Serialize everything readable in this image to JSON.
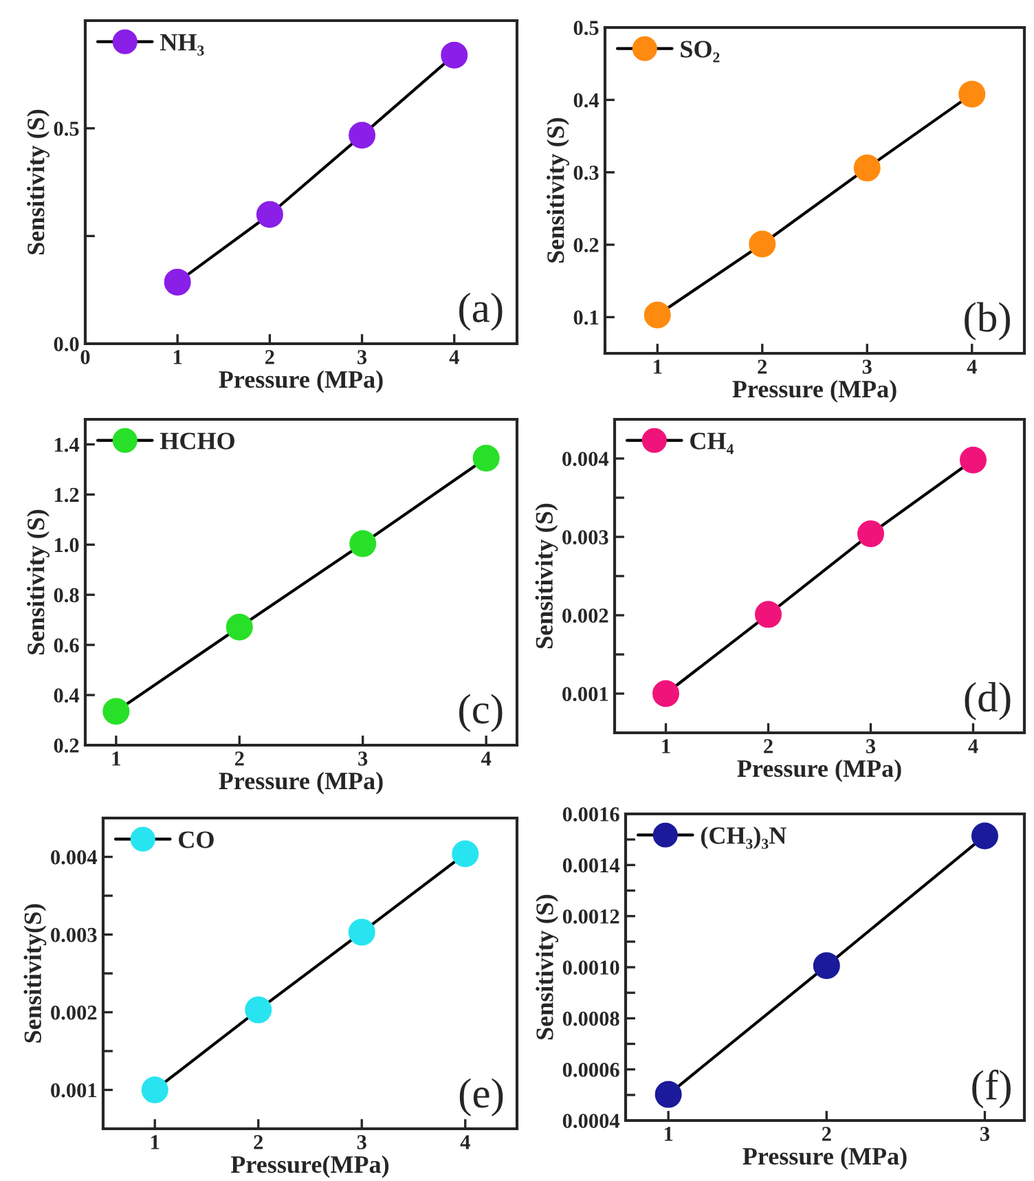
{
  "chart_data": [
    {
      "type": "line",
      "xlabel": "Pressure (MPa)",
      "ylabel": "Sensitivity (S)",
      "x": [
        1,
        2,
        3,
        4
      ],
      "series": [
        {
          "name": "NH₃",
          "color": "#8a1fe8",
          "values": [
            0.143,
            0.3,
            0.484,
            0.67
          ]
        }
      ],
      "xlim": [
        0,
        4.68
      ],
      "ylim": [
        0,
        0.75
      ],
      "xticks": [
        0,
        1,
        2,
        3,
        4
      ],
      "yticks": [
        {
          "value": 0,
          "label": "0.0"
        },
        {
          "value": 0.25,
          "label": null
        },
        0.5
      ],
      "marker": "circle",
      "line_style": "solid",
      "legend": "top left",
      "grid": false,
      "annotations": [
        "(a)"
      ]
    },
    {
      "type": "line",
      "xlabel": "Pressure (MPa)",
      "ylabel": "Sensitivity (S)",
      "x": [
        1,
        2,
        3,
        4
      ],
      "series": [
        {
          "name": "SO₂",
          "color": "#ff8a10",
          "values": [
            0.103,
            0.201,
            0.306,
            0.408
          ]
        }
      ],
      "xlim": [
        0.5,
        4.5
      ],
      "ylim": [
        0.05,
        0.5
      ],
      "xticks": [
        1,
        2,
        3,
        4
      ],
      "yticks": [
        0.1,
        0.2,
        0.3,
        0.4,
        0.5
      ],
      "marker": "circle",
      "line_style": "solid",
      "legend": "top left",
      "grid": false,
      "annotations": [
        "(b)"
      ]
    },
    {
      "type": "line",
      "xlabel": "Pressure (MPa)",
      "ylabel": "Sensitivity (S)",
      "x": [
        1,
        2,
        3,
        4
      ],
      "series": [
        {
          "name": "HCHO",
          "color": "#28e028",
          "values": [
            0.335,
            0.671,
            1.004,
            1.345
          ]
        }
      ],
      "xlim": [
        0.75,
        4.25
      ],
      "ylim": [
        0.2,
        1.5
      ],
      "xticks": [
        1,
        2,
        3,
        4
      ],
      "yticks": [
        0.2,
        0.4,
        0.6,
        0.8,
        {
          "value": 1,
          "label": "1.0"
        },
        1.2,
        1.4
      ],
      "marker": "circle",
      "line_style": "solid",
      "legend": "top left",
      "grid": false,
      "annotations": [
        "(c)"
      ]
    },
    {
      "type": "line",
      "xlabel": "Pressure (MPa)",
      "ylabel": "Sensitivity (S)",
      "x": [
        1,
        2,
        3,
        4
      ],
      "series": [
        {
          "name": "CH₄",
          "color": "#f0147a",
          "values": [
            0.001,
            0.00201,
            0.00304,
            0.00398
          ]
        }
      ],
      "xlim": [
        0.5,
        4.5
      ],
      "ylim": [
        0.0005,
        0.0045
      ],
      "xticks": [
        1,
        2,
        3,
        4
      ],
      "yticks": [
        0.001,
        {
          "value": 0.0015,
          "label": null
        },
        0.002,
        {
          "value": 0.0025,
          "label": null
        },
        0.003,
        {
          "value": 0.0035,
          "label": null
        },
        0.004
      ],
      "marker": "circle",
      "line_style": "solid",
      "legend": "top left",
      "grid": false,
      "annotations": [
        "(d)"
      ]
    },
    {
      "type": "line",
      "xlabel": "Pressure(MPa)",
      "ylabel": "Sensitivity(S)",
      "x": [
        1,
        2,
        3,
        4
      ],
      "series": [
        {
          "name": "CO",
          "color": "#28e4f0",
          "values": [
            0.001,
            0.00203,
            0.00303,
            0.00404
          ]
        }
      ],
      "xlim": [
        0.5,
        4.5
      ],
      "ylim": [
        0.0005,
        0.0045
      ],
      "xticks": [
        1,
        2,
        3,
        4
      ],
      "yticks": [
        0.001,
        {
          "value": 0.0015,
          "label": null
        },
        0.002,
        {
          "value": 0.0025,
          "label": null
        },
        0.003,
        {
          "value": 0.0035,
          "label": null
        },
        0.004
      ],
      "marker": "circle",
      "line_style": "solid",
      "legend": "top left",
      "grid": false,
      "annotations": [
        "(e)"
      ]
    },
    {
      "type": "line",
      "xlabel": "Pressure (MPa)",
      "ylabel": "Sensitivity (S)",
      "x": [
        1,
        2,
        3
      ],
      "series": [
        {
          "name": "(CH₃)₃N",
          "color": "#1a1a9a",
          "values": [
            0.000502,
            0.001006,
            0.001514
          ]
        }
      ],
      "xlim": [
        0.73,
        3.25
      ],
      "ylim": [
        0.0004,
        0.0016
      ],
      "xticks": [
        1,
        2,
        3
      ],
      "yticks": [
        0.0004,
        {
          "value": 0.0005,
          "label": null
        },
        0.0006,
        {
          "value": 0.0007,
          "label": null
        },
        0.0008,
        {
          "value": 0.0009,
          "label": null
        },
        {
          "value": 0.001,
          "label": "0.0010"
        },
        {
          "value": 0.0011,
          "label": null
        },
        0.0012,
        {
          "value": 0.0013,
          "label": null
        },
        0.0014,
        {
          "value": 0.0015,
          "label": null
        },
        0.0016
      ],
      "marker": "circle",
      "line_style": "solid",
      "legend": "top left",
      "grid": false,
      "annotations": [
        "(f)"
      ]
    }
  ]
}
